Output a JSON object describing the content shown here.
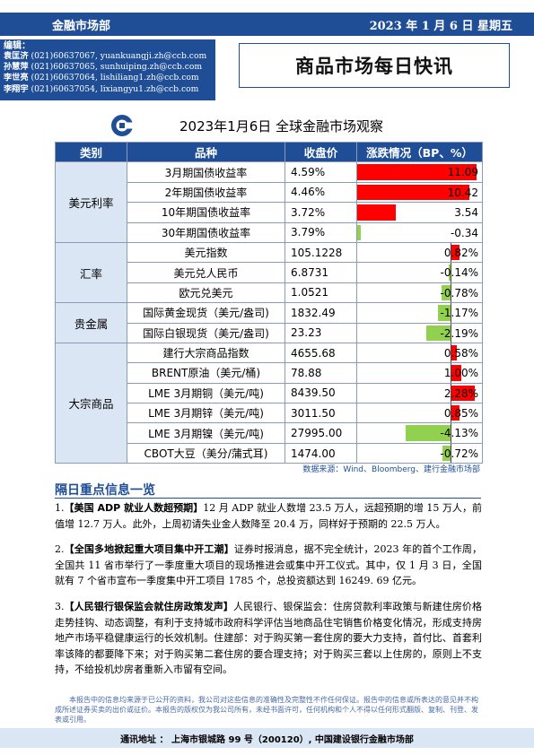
{
  "header": {
    "department": "金融市场部",
    "date": "2023 年 1 月 6 日  星期五"
  },
  "editors": {
    "label": "编辑：",
    "list": [
      {
        "name": "袁匡济",
        "phone": "(021)60637067,",
        "email": "yuankuangji.zh@ccb.com"
      },
      {
        "name": "孙慧萍",
        "phone": "(021)60637065,",
        "email": "sunhuiping.zh@ccb.com"
      },
      {
        "name": "李世亮",
        "phone": "(021)60637064,",
        "email": "lishiliang1.zh@ccb.com"
      },
      {
        "name": "李翔宇",
        "phone": "(021)60637054,",
        "email": "lixiangyu1.zh@ccb.com"
      }
    ]
  },
  "report_title": "商品市场每日快讯",
  "logo_icon": "ccb-logo-icon",
  "market_table": {
    "title": "2023年1月6日  全球金融市场观察",
    "headers": [
      "类别",
      "品种",
      "收盘价",
      "涨跌情况（BP、%）"
    ],
    "groups": [
      {
        "category": "美元利率",
        "rows": [
          {
            "item": "3月期国债收益率",
            "close": "4.59%",
            "change_label": "11.09",
            "change": 11.09
          },
          {
            "item": "2年期国债收益率",
            "close": "4.46%",
            "change_label": "10.42",
            "change": 10.42
          },
          {
            "item": "10年期国债收益率",
            "close": "3.72%",
            "change_label": "3.54",
            "change": 3.54
          },
          {
            "item": "30年期国债收益率",
            "close": "3.79%",
            "change_label": "-0.34",
            "change": -0.34
          }
        ]
      },
      {
        "category": "汇率",
        "rows": [
          {
            "item": "美元指数",
            "close": "105.1228",
            "change_label": "0.82%",
            "change": 0.82
          },
          {
            "item": "美元兑人民币",
            "close": "6.8731",
            "change_label": "-0.14%",
            "change": -0.14
          },
          {
            "item": "欧元兑美元",
            "close": "1.0521",
            "change_label": "-0.78%",
            "change": -0.78
          }
        ]
      },
      {
        "category": "贵金属",
        "rows": [
          {
            "item": "国际黄金现货（美元/盎司)",
            "close": "1832.49",
            "change_label": "-1.17%",
            "change": -1.17
          },
          {
            "item": "国际白银现货（美元/盎司)",
            "close": "23.23",
            "change_label": "-2.19%",
            "change": -2.19
          }
        ]
      },
      {
        "category": "大宗商品",
        "rows": [
          {
            "item": "建行大宗商品指数",
            "close": "4655.68",
            "change_label": "0.58%",
            "change": 0.58
          },
          {
            "item": "BRENT原油（美元/桶)",
            "close": "78.88",
            "change_label": "1.00%",
            "change": 1.0
          },
          {
            "item": "LME 3月期铜（美元/吨)",
            "close": "8439.50",
            "change_label": "2.28%",
            "change": 2.28
          },
          {
            "item": "LME 3月期锌（美元/吨)",
            "close": "3011.50",
            "change_label": "0.85%",
            "change": 0.85
          },
          {
            "item": "LME 3月期镍（美元/吨)",
            "close": "27995.00",
            "change_label": "-4.13%",
            "change": -4.13
          },
          {
            "item": "CBOT大豆（美分/蒲式耳)",
            "close": "1474.00",
            "change_label": "-0.72%",
            "change": -0.72
          }
        ]
      }
    ],
    "source": "数据来源：Wind、Bloomberg、建行金融市场部",
    "colors": {
      "positive": "#ff0000",
      "negative": "#92d050",
      "header": "#1f4e96",
      "category_bg": "#dbe6f4"
    }
  },
  "news_section": {
    "title": "隔日重点信息一览",
    "items": [
      {
        "num": "1.",
        "head": "【美国 ADP 就业人数超预期】",
        "body": "12 月 ADP 就业人数增 23.5 万人，远超预期的增 15 万人，前值增 12.7 万人。此外，上周初请失业金人数降至 20.4 万，同样好于预期的 22.5 万人。"
      },
      {
        "num": "2.",
        "head": "【全国多地掀起重大项目集中开工潮】",
        "body": "证券时报消息，据不完全统计，2023 年的首个工作周，全国共 11 省市举行了一季度重大项目的现场推进会或集中开工仪式。其中，仅 1 月 3 日，全国就有 7 个省市宣布一季度集中开工项目 1785 个，总投资额达到 16249. 69 亿元。"
      },
      {
        "num": "3.",
        "head": "【人民银行银保监会就住房政策发声】",
        "body": "人民银行、银保监会：住房贷款利率政策与新建住房价格走势挂钩、动态调整，有利于支持城市政府科学评估当地商品住宅销售价格变化情况，形成支持房地产市场平稳健康运行的长效机制。住建部：对于购买第一套住房的要大力支持，首付比、首套利率该降的都要降下来；对于购买第二套住房的要合理支持；对于购买三套以上住房的，原则上不支持，不给投机炒房者重新入市留有空间。"
      }
    ]
  },
  "disclaimer": "本报告中的信息均来源于已公开的资料，我公司对这些信息的准确性及完整性不作任何保证。报告中的信息或所表达的意见并不构成所述证券买卖的出价或征价。本报告的版权仅为我公司所有，未经书面许可，任何机构和个人不得以任何形式翻版、复制、刊登、发表或引用。",
  "footer": "通讯地址 ： 上海市银城路 99 号（200120）, 中国建设银行金融市场部"
}
